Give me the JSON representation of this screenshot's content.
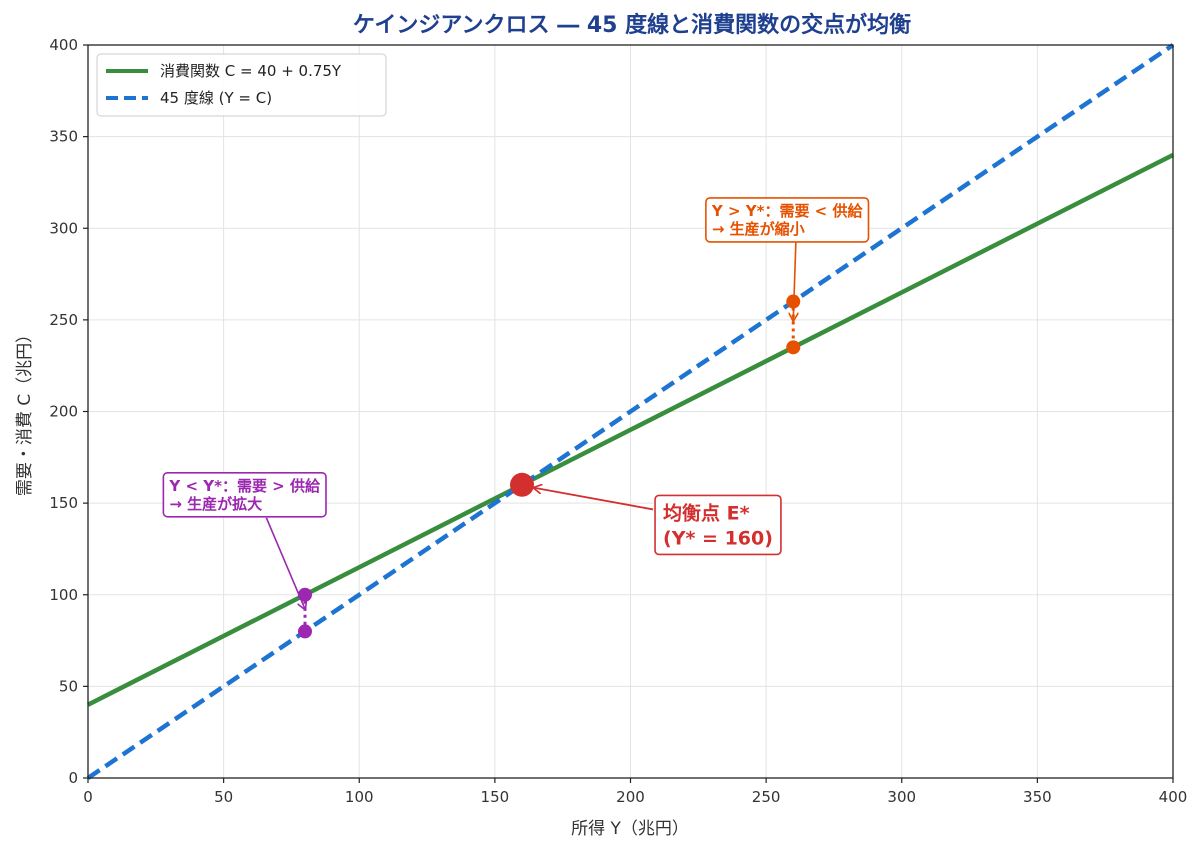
{
  "chart_data": {
    "type": "line",
    "title": "ケインジアンクロス ― 45 度線と消費関数の交点が均衡",
    "xlabel": "所得 Y（兆円）",
    "ylabel": "需要・消費 C（兆円）",
    "xlim": [
      0,
      400
    ],
    "ylim": [
      0,
      400
    ],
    "xticks": [
      "0",
      "50",
      "100",
      "150",
      "200",
      "250",
      "300",
      "350",
      "400"
    ],
    "yticks": [
      "0",
      "50",
      "100",
      "150",
      "200",
      "250",
      "300",
      "350",
      "400"
    ],
    "grid": true,
    "legend_position": "top-left",
    "colors": {
      "title": "#1f3f8f",
      "consumption": "#388e3c",
      "line45": "#1e74d2",
      "equilibrium": "#d32f2f",
      "left_gap": "#9c27b0",
      "right_gap": "#e65100"
    },
    "series": [
      {
        "name": "消費関数 C = 40 + 0.75Y",
        "style": "solid",
        "x": [
          0,
          400
        ],
        "y": [
          40,
          340
        ]
      },
      {
        "name": "45 度線 (Y = C)",
        "style": "dashed",
        "x": [
          0,
          400
        ],
        "y": [
          0,
          400
        ]
      }
    ],
    "equilibrium": {
      "x": 160,
      "y": 160,
      "label_line1": "均衡点 E*",
      "label_line2": "(Y* = 160)",
      "label_x": 212,
      "label_y": 128
    },
    "gaps": [
      {
        "id": "left",
        "x": 80,
        "y_high": 100,
        "y_low": 80,
        "label_line1": "Y < Y*：需要 > 供給",
        "label_line2": "→ 生産が拡大",
        "label_x": 30,
        "label_y": 148
      },
      {
        "id": "right",
        "x": 260,
        "y_high": 260,
        "y_low": 235,
        "label_line1": "Y > Y*：需要 < 供給",
        "label_line2": "→ 生産が縮小",
        "label_x": 230,
        "label_y": 298
      }
    ]
  }
}
